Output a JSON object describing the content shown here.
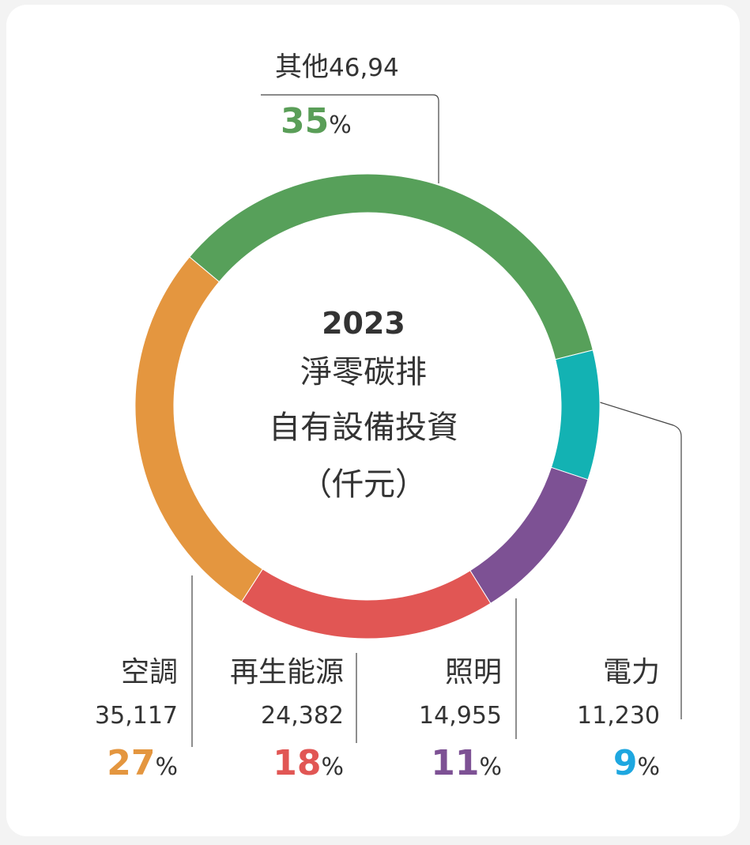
{
  "chart_data": {
    "type": "donut",
    "title_lines": [
      "2023",
      "淨零碳排",
      "自有設備投資",
      "（仟元）"
    ],
    "categories": [
      "其他",
      "電力",
      "照明",
      "再生能源",
      "空調"
    ],
    "amounts": [
      "46,94",
      "11,230",
      "14,955",
      "24,382",
      "35,117"
    ],
    "values": [
      35,
      9,
      11,
      18,
      27
    ],
    "unit": "%",
    "colors": [
      "#57a05a",
      "#13b2b3",
      "#7d5194",
      "#e15654",
      "#e4963f"
    ],
    "label_colors": [
      "#5a9e58",
      "#1ea7e0",
      "#7d5194",
      "#e15654",
      "#e4963f"
    ]
  }
}
